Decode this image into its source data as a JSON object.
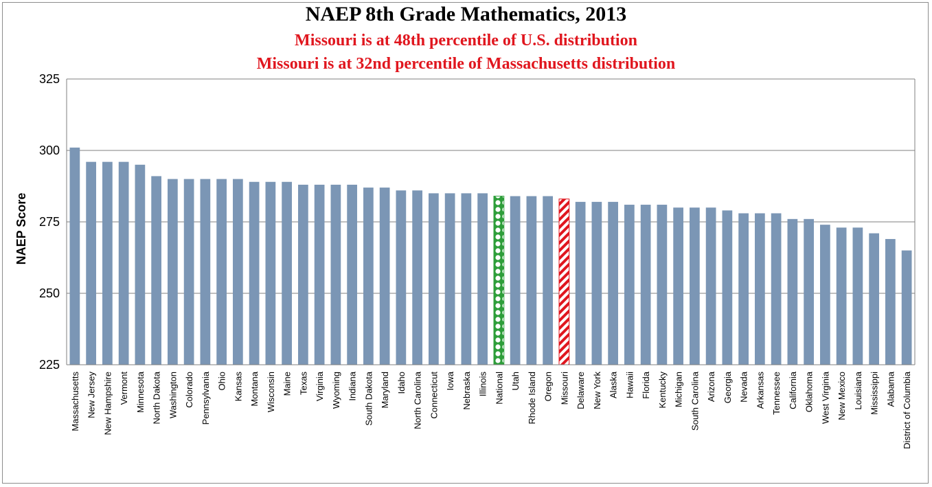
{
  "chart_data": {
    "type": "bar",
    "title": "NAEP 8th Grade Mathematics, 2013",
    "subtitles": [
      "Missouri is at 48th percentile of U.S. distribution",
      "Missouri is at 32nd percentile of Massachusetts distribution"
    ],
    "xlabel": "",
    "ylabel": "NAEP Score",
    "ylim": [
      225,
      325
    ],
    "yticks": [
      "225",
      "250",
      "275",
      "300",
      "325"
    ],
    "grid": true,
    "categories": [
      "Massachusetts",
      "New Jersey",
      "New Hampshire",
      "Vermont",
      "Minnesota",
      "North Dakota",
      "Washington",
      "Colorado",
      "Pennsylvania",
      "Ohio",
      "Kansas",
      "Montana",
      "Wisconsin",
      "Maine",
      "Texas",
      "Virginia",
      "Wyoming",
      "Indiana",
      "South Dakota",
      "Maryland",
      "Idaho",
      "North Carolina",
      "Connecticut",
      "Iowa",
      "Nebraska",
      "Illinois",
      "National",
      "Utah",
      "Rhode Island",
      "Oregon",
      "Missouri",
      "Delaware",
      "New York",
      "Alaska",
      "Hawaii",
      "Florida",
      "Kentucky",
      "Michigan",
      "South Carolina",
      "Arizona",
      "Georgia",
      "Nevada",
      "Arkansas",
      "Tennessee",
      "California",
      "Oklahoma",
      "West Virginia",
      "New Mexico",
      "Louisiana",
      "Mississippi",
      "Alabama",
      "District of Columbia"
    ],
    "values": [
      301,
      296,
      296,
      296,
      295,
      291,
      290,
      290,
      290,
      290,
      290,
      289,
      289,
      289,
      288,
      288,
      288,
      288,
      287,
      287,
      286,
      286,
      285,
      285,
      285,
      285,
      284,
      284,
      284,
      284,
      283,
      282,
      282,
      282,
      281,
      281,
      281,
      280,
      280,
      280,
      279,
      278,
      278,
      278,
      276,
      276,
      274,
      273,
      273,
      271,
      269,
      265
    ],
    "highlights": {
      "National": "dots",
      "Missouri": "stripes"
    },
    "colors": {
      "bar": "#7b96b5",
      "national": "#2e9e3a",
      "missouri": "#e0161e",
      "grid": "#7f7f7f",
      "title_sub": "#e0161e"
    }
  }
}
